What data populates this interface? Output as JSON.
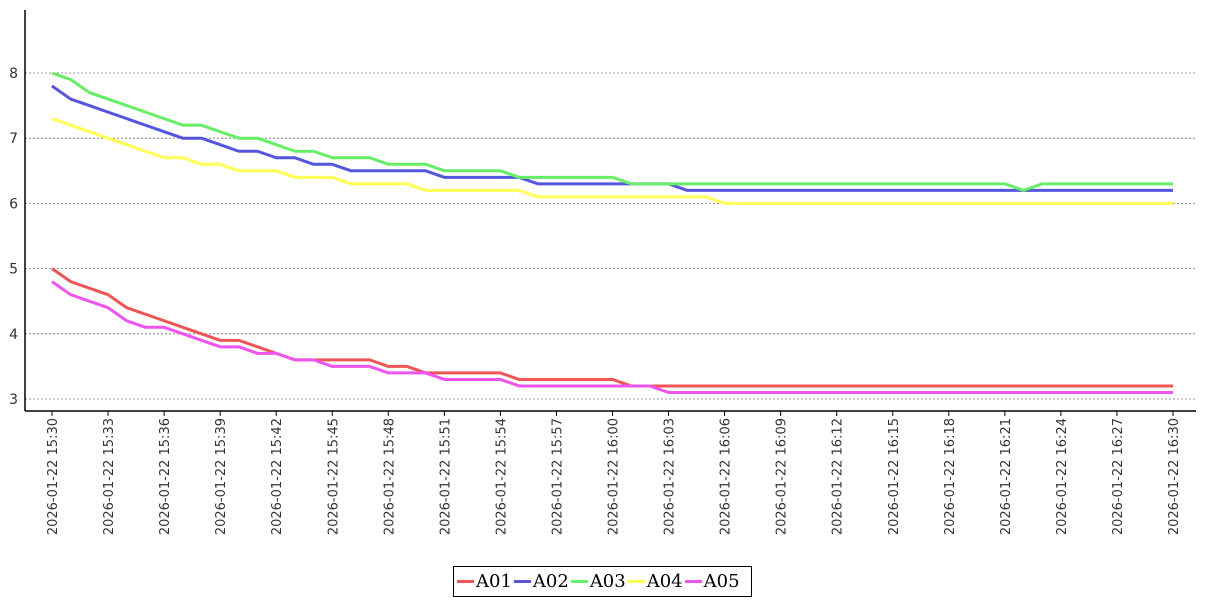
{
  "chart_data": {
    "type": "line",
    "title": "",
    "xlabel": "",
    "ylabel": "",
    "ylim": [
      2.85,
      8.95
    ],
    "yticks": [
      3,
      4,
      5,
      6,
      7,
      8
    ],
    "grid": "horizontal dashed",
    "legend_position": "bottom-center",
    "x": [
      "2026-01-22 15:30",
      "2026-01-22 15:31",
      "2026-01-22 15:32",
      "2026-01-22 15:33",
      "2026-01-22 15:34",
      "2026-01-22 15:35",
      "2026-01-22 15:36",
      "2026-01-22 15:37",
      "2026-01-22 15:38",
      "2026-01-22 15:39",
      "2026-01-22 15:40",
      "2026-01-22 15:41",
      "2026-01-22 15:42",
      "2026-01-22 15:43",
      "2026-01-22 15:44",
      "2026-01-22 15:45",
      "2026-01-22 15:46",
      "2026-01-22 15:47",
      "2026-01-22 15:48",
      "2026-01-22 15:49",
      "2026-01-22 15:50",
      "2026-01-22 15:51",
      "2026-01-22 15:52",
      "2026-01-22 15:53",
      "2026-01-22 15:54",
      "2026-01-22 15:55",
      "2026-01-22 15:56",
      "2026-01-22 15:57",
      "2026-01-22 15:58",
      "2026-01-22 15:59",
      "2026-01-22 16:00",
      "2026-01-22 16:01",
      "2026-01-22 16:02",
      "2026-01-22 16:03",
      "2026-01-22 16:04",
      "2026-01-22 16:05",
      "2026-01-22 16:06",
      "2026-01-22 16:07",
      "2026-01-22 16:08",
      "2026-01-22 16:09",
      "2026-01-22 16:10",
      "2026-01-22 16:11",
      "2026-01-22 16:12",
      "2026-01-22 16:13",
      "2026-01-22 16:14",
      "2026-01-22 16:15",
      "2026-01-22 16:16",
      "2026-01-22 16:17",
      "2026-01-22 16:18",
      "2026-01-22 16:19",
      "2026-01-22 16:20",
      "2026-01-22 16:21",
      "2026-01-22 16:22",
      "2026-01-22 16:23",
      "2026-01-22 16:24",
      "2026-01-22 16:25",
      "2026-01-22 16:26",
      "2026-01-22 16:27",
      "2026-01-22 16:28",
      "2026-01-22 16:29",
      "2026-01-22 16:30"
    ],
    "xtick_labels": [
      "2026-01-22 15:30",
      "2026-01-22 15:33",
      "2026-01-22 15:36",
      "2026-01-22 15:39",
      "2026-01-22 15:42",
      "2026-01-22 15:45",
      "2026-01-22 15:48",
      "2026-01-22 15:51",
      "2026-01-22 15:54",
      "2026-01-22 15:57",
      "2026-01-22 16:00",
      "2026-01-22 16:03",
      "2026-01-22 16:06",
      "2026-01-22 16:09",
      "2026-01-22 16:12",
      "2026-01-22 16:15",
      "2026-01-22 16:18",
      "2026-01-22 16:21",
      "2026-01-22 16:24",
      "2026-01-22 16:27",
      "2026-01-22 16:30"
    ],
    "series": [
      {
        "name": "A01",
        "color": "#ee5555",
        "values": [
          5.0,
          4.8,
          4.7,
          4.6,
          4.4,
          4.3,
          4.2,
          4.1,
          4.0,
          3.9,
          3.9,
          3.8,
          3.7,
          3.6,
          3.6,
          3.6,
          3.6,
          3.6,
          3.5,
          3.5,
          3.4,
          3.4,
          3.4,
          3.4,
          3.4,
          3.3,
          3.3,
          3.3,
          3.3,
          3.3,
          3.3,
          3.2,
          3.2,
          3.2,
          3.2,
          3.2,
          3.2,
          3.2,
          3.2,
          3.2,
          3.2,
          3.2,
          3.2,
          3.2,
          3.2,
          3.2,
          3.2,
          3.2,
          3.2,
          3.2,
          3.2,
          3.2,
          3.2,
          3.2,
          3.2,
          3.2,
          3.2,
          3.2,
          3.2,
          3.2,
          3.2
        ]
      },
      {
        "name": "A02",
        "color": "#5555dd",
        "values": [
          7.8,
          7.6,
          7.5,
          7.4,
          7.3,
          7.2,
          7.1,
          7.0,
          7.0,
          6.9,
          6.8,
          6.8,
          6.7,
          6.7,
          6.6,
          6.6,
          6.5,
          6.5,
          6.5,
          6.5,
          6.5,
          6.4,
          6.4,
          6.4,
          6.4,
          6.4,
          6.3,
          6.3,
          6.3,
          6.3,
          6.3,
          6.3,
          6.3,
          6.3,
          6.2,
          6.2,
          6.2,
          6.2,
          6.2,
          6.2,
          6.2,
          6.2,
          6.2,
          6.2,
          6.2,
          6.2,
          6.2,
          6.2,
          6.2,
          6.2,
          6.2,
          6.2,
          6.2,
          6.2,
          6.2,
          6.2,
          6.2,
          6.2,
          6.2,
          6.2,
          6.2
        ]
      },
      {
        "name": "A03",
        "color": "#66ee66",
        "values": [
          8.0,
          7.9,
          7.7,
          7.6,
          7.5,
          7.4,
          7.3,
          7.2,
          7.2,
          7.1,
          7.0,
          7.0,
          6.9,
          6.8,
          6.8,
          6.7,
          6.7,
          6.7,
          6.6,
          6.6,
          6.6,
          6.5,
          6.5,
          6.5,
          6.5,
          6.4,
          6.4,
          6.4,
          6.4,
          6.4,
          6.4,
          6.3,
          6.3,
          6.3,
          6.3,
          6.3,
          6.3,
          6.3,
          6.3,
          6.3,
          6.3,
          6.3,
          6.3,
          6.3,
          6.3,
          6.3,
          6.3,
          6.3,
          6.3,
          6.3,
          6.3,
          6.3,
          6.2,
          6.3,
          6.3,
          6.3,
          6.3,
          6.3,
          6.3,
          6.3,
          6.3
        ]
      },
      {
        "name": "A04",
        "color": "#ffff55",
        "values": [
          7.3,
          7.2,
          7.1,
          7.0,
          6.9,
          6.8,
          6.7,
          6.7,
          6.6,
          6.6,
          6.5,
          6.5,
          6.5,
          6.4,
          6.4,
          6.4,
          6.3,
          6.3,
          6.3,
          6.3,
          6.2,
          6.2,
          6.2,
          6.2,
          6.2,
          6.2,
          6.1,
          6.1,
          6.1,
          6.1,
          6.1,
          6.1,
          6.1,
          6.1,
          6.1,
          6.1,
          6.0,
          6.0,
          6.0,
          6.0,
          6.0,
          6.0,
          6.0,
          6.0,
          6.0,
          6.0,
          6.0,
          6.0,
          6.0,
          6.0,
          6.0,
          6.0,
          6.0,
          6.0,
          6.0,
          6.0,
          6.0,
          6.0,
          6.0,
          6.0,
          6.0
        ]
      },
      {
        "name": "A05",
        "color": "#ee55ee",
        "values": [
          4.8,
          4.6,
          4.5,
          4.4,
          4.2,
          4.1,
          4.1,
          4.0,
          3.9,
          3.8,
          3.8,
          3.7,
          3.7,
          3.6,
          3.6,
          3.5,
          3.5,
          3.5,
          3.4,
          3.4,
          3.4,
          3.3,
          3.3,
          3.3,
          3.3,
          3.2,
          3.2,
          3.2,
          3.2,
          3.2,
          3.2,
          3.2,
          3.2,
          3.1,
          3.1,
          3.1,
          3.1,
          3.1,
          3.1,
          3.1,
          3.1,
          3.1,
          3.1,
          3.1,
          3.1,
          3.1,
          3.1,
          3.1,
          3.1,
          3.1,
          3.1,
          3.1,
          3.1,
          3.1,
          3.1,
          3.1,
          3.1,
          3.1,
          3.1,
          3.1,
          3.1
        ]
      }
    ]
  }
}
